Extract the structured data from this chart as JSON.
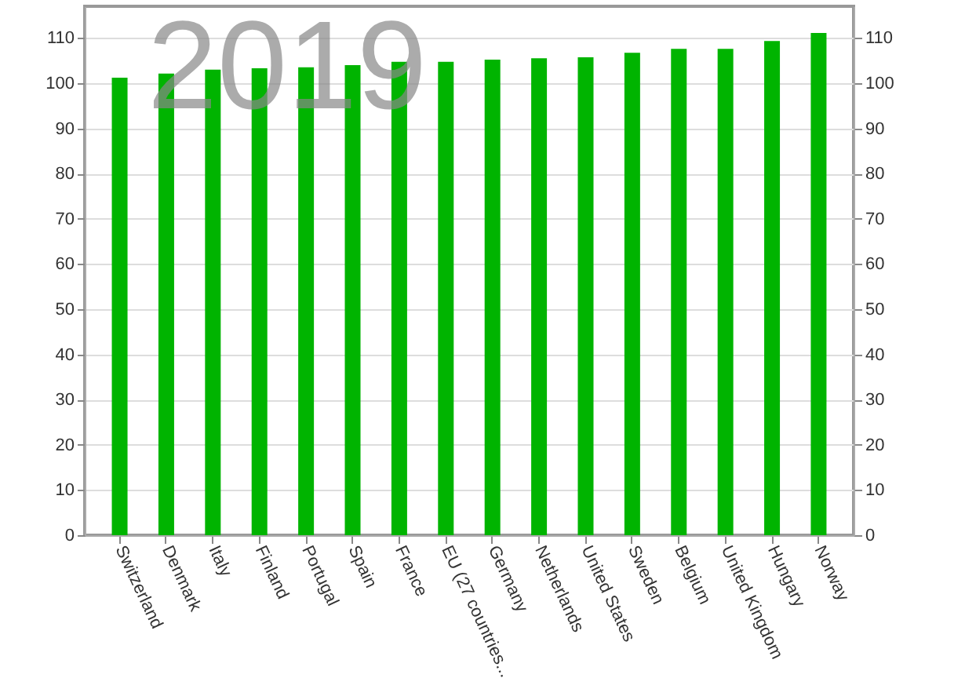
{
  "chart_data": {
    "type": "bar",
    "categories": [
      "Switzerland",
      "Denmark",
      "Italy",
      "Finland",
      "Portugal",
      "Spain",
      "France",
      "EU (27 countries...",
      "Germany",
      "Netherlands",
      "United States",
      "Sweden",
      "Belgium",
      "United Kingdom",
      "Hungary",
      "Norway"
    ],
    "values": [
      101.2,
      102.1,
      103.0,
      103.3,
      103.5,
      104.0,
      104.7,
      104.7,
      105.2,
      105.5,
      105.7,
      106.7,
      107.6,
      107.6,
      109.3,
      111.1
    ],
    "color": "#00b400",
    "ylim": [
      0,
      117
    ],
    "yticks": [
      0,
      10,
      20,
      30,
      40,
      50,
      60,
      70,
      80,
      90,
      100,
      110
    ],
    "y2lim": [
      0,
      117
    ],
    "y2ticks": [
      0,
      10,
      20,
      30,
      40,
      50,
      60,
      70,
      80,
      90,
      100,
      110
    ],
    "grid": "y",
    "annotations": [
      "2019"
    ]
  }
}
